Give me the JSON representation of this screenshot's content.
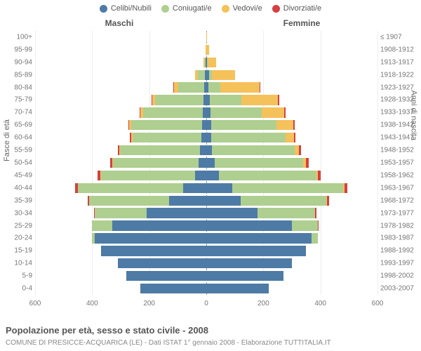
{
  "legend": {
    "items": [
      {
        "label": "Celibi/Nubili",
        "color": "#4d7ba6"
      },
      {
        "label": "Coniugati/e",
        "color": "#aecf8f"
      },
      {
        "label": "Vedovi/e",
        "color": "#f5c15b"
      },
      {
        "label": "Divorziati/e",
        "color": "#d64040"
      }
    ]
  },
  "col_headers": {
    "male": "Maschi",
    "female": "Femmine"
  },
  "y_title_left": "Fasce di età",
  "y_title_right": "Anni di nascita",
  "footer_title": "Popolazione per età, sesso e stato civile - 2008",
  "footer_sub": "COMUNE DI PRESICCE-ACQUARICA (LE) - Dati ISTAT 1° gennaio 2008 - Elaborazione TUTTITALIA.IT",
  "xaxis": {
    "max": 600,
    "ticks": [
      600,
      400,
      200,
      0,
      200,
      400,
      600
    ]
  },
  "colors": {
    "celibi": "#4d7ba6",
    "coniugati": "#aecf8f",
    "vedovi": "#f5c15b",
    "divorziati": "#d64040",
    "grid": "#eeeeee",
    "center": "#999999",
    "text": "#777777"
  },
  "rows": [
    {
      "age": "100+",
      "birth": "≤ 1907",
      "m": [
        0,
        0,
        1,
        0
      ],
      "f": [
        0,
        0,
        2,
        0
      ]
    },
    {
      "age": "95-99",
      "birth": "1908-1912",
      "m": [
        0,
        0,
        3,
        0
      ],
      "f": [
        0,
        0,
        10,
        0
      ]
    },
    {
      "age": "90-94",
      "birth": "1913-1917",
      "m": [
        2,
        2,
        6,
        0
      ],
      "f": [
        3,
        2,
        30,
        0
      ]
    },
    {
      "age": "85-89",
      "birth": "1918-1922",
      "m": [
        4,
        25,
        10,
        0
      ],
      "f": [
        10,
        10,
        80,
        0
      ]
    },
    {
      "age": "80-84",
      "birth": "1923-1927",
      "m": [
        8,
        90,
        15,
        2
      ],
      "f": [
        8,
        40,
        140,
        2
      ]
    },
    {
      "age": "75-79",
      "birth": "1928-1932",
      "m": [
        10,
        170,
        10,
        2
      ],
      "f": [
        12,
        110,
        130,
        3
      ]
    },
    {
      "age": "70-74",
      "birth": "1933-1937",
      "m": [
        12,
        210,
        8,
        3
      ],
      "f": [
        14,
        180,
        80,
        3
      ]
    },
    {
      "age": "65-69",
      "birth": "1938-1942",
      "m": [
        14,
        250,
        6,
        4
      ],
      "f": [
        16,
        230,
        60,
        4
      ]
    },
    {
      "age": "60-64",
      "birth": "1943-1947",
      "m": [
        18,
        240,
        4,
        6
      ],
      "f": [
        18,
        260,
        30,
        5
      ]
    },
    {
      "age": "55-59",
      "birth": "1948-1952",
      "m": [
        22,
        280,
        3,
        6
      ],
      "f": [
        20,
        290,
        15,
        6
      ]
    },
    {
      "age": "50-54",
      "birth": "1953-1957",
      "m": [
        28,
        300,
        2,
        8
      ],
      "f": [
        30,
        310,
        10,
        8
      ]
    },
    {
      "age": "45-49",
      "birth": "1958-1962",
      "m": [
        40,
        330,
        2,
        10
      ],
      "f": [
        45,
        340,
        6,
        10
      ]
    },
    {
      "age": "40-44",
      "birth": "1963-1967",
      "m": [
        80,
        370,
        1,
        8
      ],
      "f": [
        90,
        390,
        4,
        10
      ]
    },
    {
      "age": "35-39",
      "birth": "1968-1972",
      "m": [
        130,
        280,
        0,
        6
      ],
      "f": [
        120,
        300,
        2,
        8
      ]
    },
    {
      "age": "30-34",
      "birth": "1973-1977",
      "m": [
        210,
        180,
        0,
        4
      ],
      "f": [
        180,
        200,
        1,
        5
      ]
    },
    {
      "age": "25-29",
      "birth": "1978-1982",
      "m": [
        330,
        70,
        0,
        2
      ],
      "f": [
        300,
        90,
        0,
        3
      ]
    },
    {
      "age": "20-24",
      "birth": "1983-1987",
      "m": [
        390,
        10,
        0,
        0
      ],
      "f": [
        370,
        20,
        0,
        0
      ]
    },
    {
      "age": "15-19",
      "birth": "1988-1992",
      "m": [
        370,
        0,
        0,
        0
      ],
      "f": [
        350,
        0,
        0,
        0
      ]
    },
    {
      "age": "10-14",
      "birth": "1993-1997",
      "m": [
        310,
        0,
        0,
        0
      ],
      "f": [
        300,
        0,
        0,
        0
      ]
    },
    {
      "age": "5-9",
      "birth": "1998-2002",
      "m": [
        280,
        0,
        0,
        0
      ],
      "f": [
        270,
        0,
        0,
        0
      ]
    },
    {
      "age": "0-4",
      "birth": "2003-2007",
      "m": [
        230,
        0,
        0,
        0
      ],
      "f": [
        220,
        0,
        0,
        0
      ]
    }
  ]
}
